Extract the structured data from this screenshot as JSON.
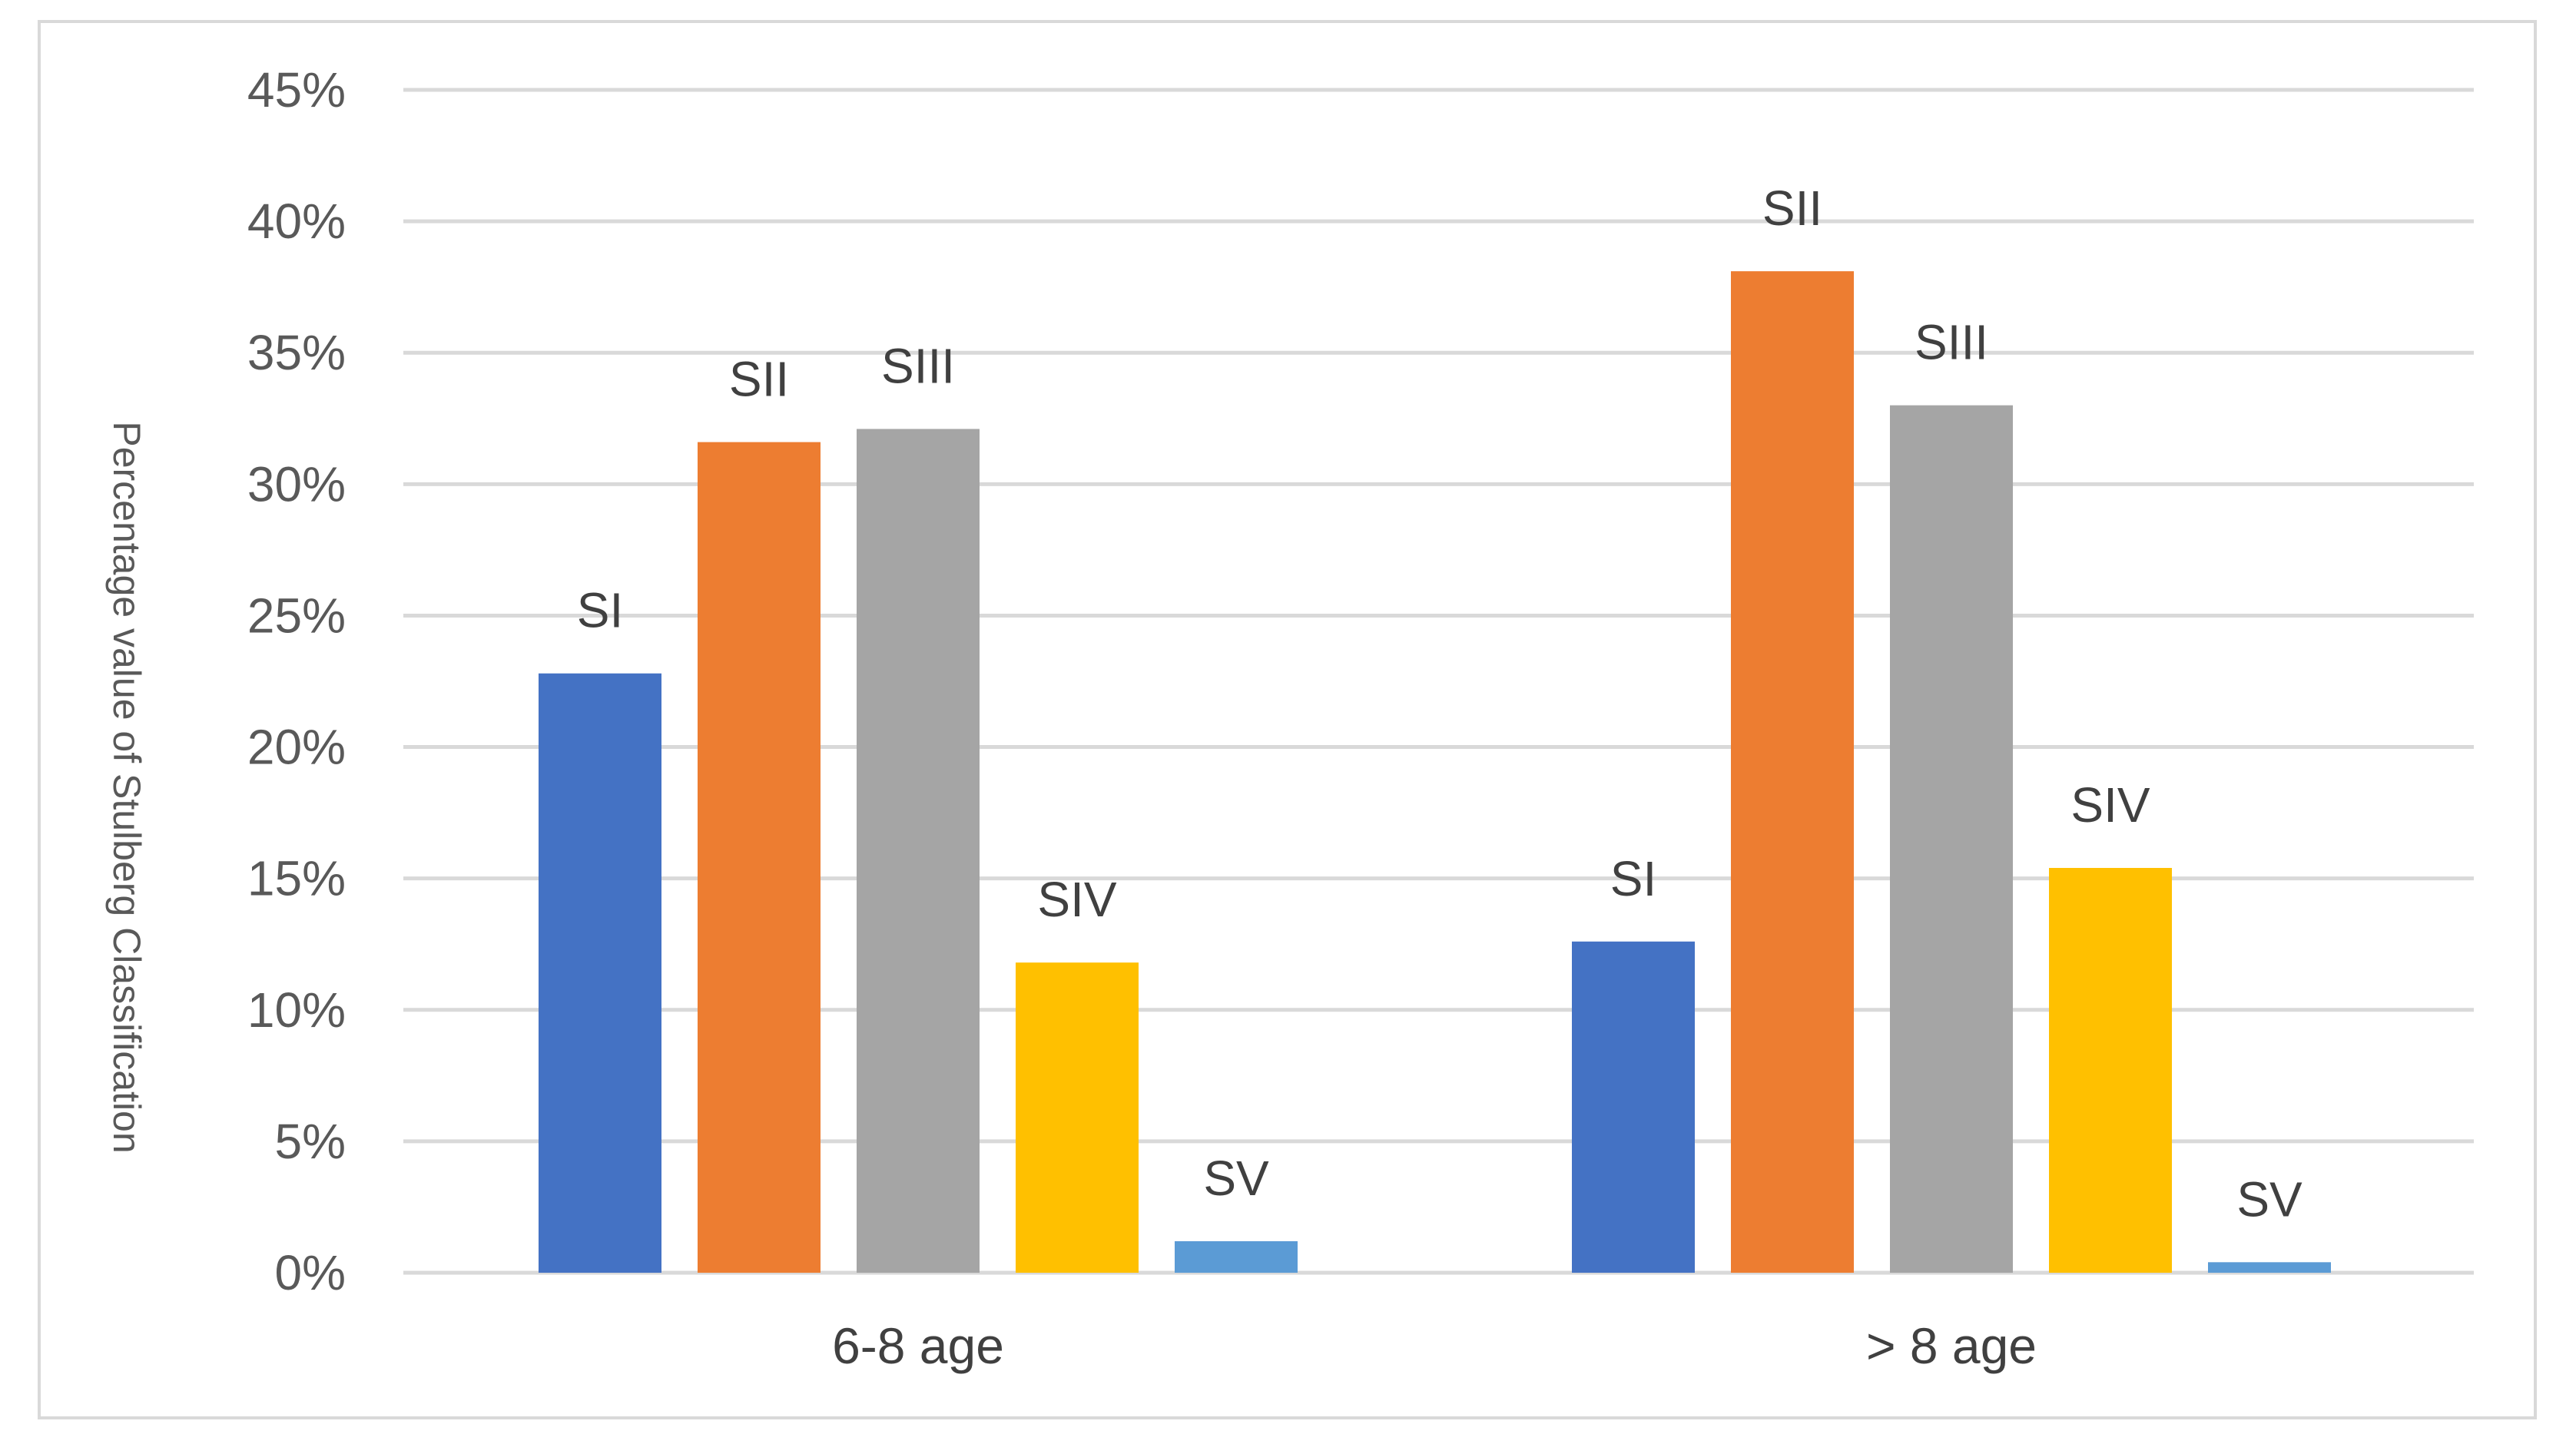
{
  "chart_data": {
    "type": "bar",
    "title": "",
    "xlabel": "",
    "ylabel": "Percentage value of Stulberg Classification",
    "categories": [
      "6-8 age",
      "> 8 age"
    ],
    "series": [
      {
        "name": "SI",
        "color": "#4472C4",
        "values": [
          22.8,
          12.6
        ]
      },
      {
        "name": "SII",
        "color": "#ED7D31",
        "values": [
          31.6,
          38.1
        ]
      },
      {
        "name": "SIII",
        "color": "#A5A5A5",
        "values": [
          32.1,
          33.0
        ]
      },
      {
        "name": "SIV",
        "color": "#FFC000",
        "values": [
          11.8,
          15.4
        ]
      },
      {
        "name": "SV",
        "color": "#5B9BD5",
        "values": [
          1.2,
          0.4
        ]
      }
    ],
    "ylim": [
      0,
      45
    ],
    "yticks": [
      0,
      5,
      10,
      15,
      20,
      25,
      30,
      35,
      40,
      45
    ],
    "ytick_labels": [
      "0%",
      "5%",
      "10%",
      "15%",
      "20%",
      "25%",
      "30%",
      "35%",
      "40%",
      "45%"
    ],
    "grid": true,
    "legend": "none",
    "gridline_color": "#d9d9d9"
  }
}
